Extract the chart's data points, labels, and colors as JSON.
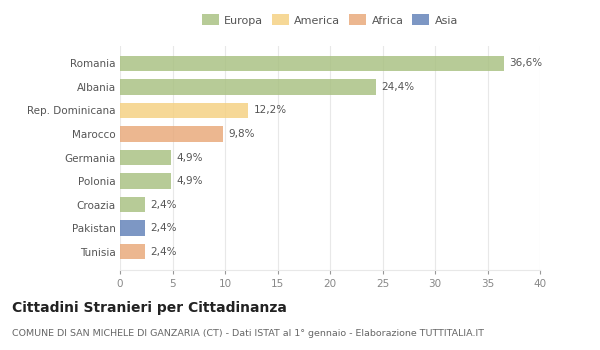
{
  "countries": [
    "Romania",
    "Albania",
    "Rep. Dominicana",
    "Marocco",
    "Germania",
    "Polonia",
    "Croazia",
    "Pakistan",
    "Tunisia"
  ],
  "values": [
    36.6,
    24.4,
    12.2,
    9.8,
    4.9,
    4.9,
    2.4,
    2.4,
    2.4
  ],
  "labels": [
    "36,6%",
    "24,4%",
    "12,2%",
    "9,8%",
    "4,9%",
    "4,9%",
    "2,4%",
    "2,4%",
    "2,4%"
  ],
  "colors": [
    "#a8c080",
    "#a8c080",
    "#f5d080",
    "#e8a878",
    "#a8c080",
    "#a8c080",
    "#a8c080",
    "#6080b8",
    "#e8a878"
  ],
  "legend_labels": [
    "Europa",
    "America",
    "Africa",
    "Asia"
  ],
  "legend_colors": [
    "#a8c080",
    "#f5d080",
    "#e8a878",
    "#6080b8"
  ],
  "title": "Cittadini Stranieri per Cittadinanza",
  "subtitle": "COMUNE DI SAN MICHELE DI GANZARIA (CT) - Dati ISTAT al 1° gennaio - Elaborazione TUTTITALIA.IT",
  "xlim": [
    0,
    40
  ],
  "xticks": [
    0,
    5,
    10,
    15,
    20,
    25,
    30,
    35,
    40
  ],
  "background_color": "#ffffff",
  "grid_color": "#e8e8e8",
  "bar_height": 0.65,
  "label_fontsize": 7.5,
  "tick_fontsize": 7.5,
  "ytick_fontsize": 7.5,
  "title_fontsize": 10,
  "subtitle_fontsize": 6.8,
  "legend_fontsize": 8
}
